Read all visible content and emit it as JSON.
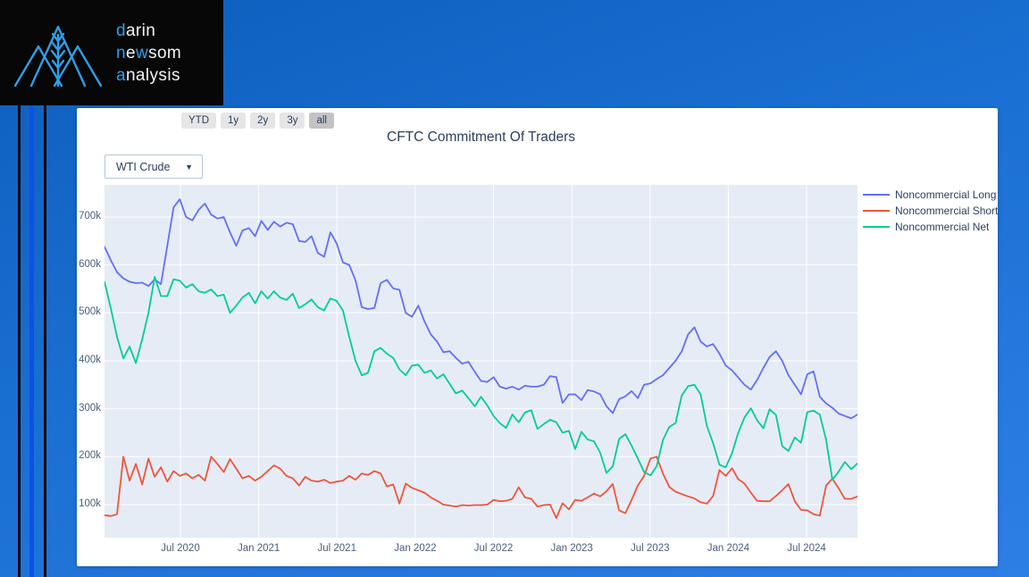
{
  "logo": {
    "lines": [
      {
        "parts": [
          {
            "t": "d",
            "c": "accent"
          },
          {
            "t": "arin",
            "c": "light"
          }
        ]
      },
      {
        "parts": [
          {
            "t": "n",
            "c": "accent"
          },
          {
            "t": "e",
            "c": "light"
          },
          {
            "t": "w",
            "c": "accent"
          },
          {
            "t": "som",
            "c": "light"
          }
        ]
      },
      {
        "parts": [
          {
            "t": "a",
            "c": "accent"
          },
          {
            "t": "nalysis",
            "c": "light"
          }
        ]
      }
    ],
    "accent_color": "#2d9fe8"
  },
  "toolbar": {
    "range_buttons": [
      {
        "label": "YTD",
        "active": false
      },
      {
        "label": "1y",
        "active": false
      },
      {
        "label": "2y",
        "active": false
      },
      {
        "label": "3y",
        "active": false
      },
      {
        "label": "all",
        "active": true
      }
    ]
  },
  "chart": {
    "title": "CFTC Commitment Of Traders",
    "dropdown": {
      "value": "WTI Crude",
      "caret": "▼"
    }
  },
  "chart_data": {
    "type": "line",
    "title": "CFTC Commitment Of Traders",
    "plot_bg": "#e5ecf6",
    "grid": true,
    "legend_position": "top-right",
    "x_axis": {
      "range": [
        2020.015,
        2024.825
      ],
      "tick_labels": [
        "Jul 2020",
        "Jan 2021",
        "Jul 2021",
        "Jan 2022",
        "Jul 2022",
        "Jan 2023",
        "Jul 2023",
        "Jan 2024",
        "Jul 2024"
      ],
      "tick_values": [
        2020.5,
        2021.0,
        2021.5,
        2022.0,
        2022.5,
        2023.0,
        2023.5,
        2024.0,
        2024.5
      ]
    },
    "y_axis": {
      "range": [
        31,
        767
      ],
      "tick_labels": [
        "100k",
        "200k",
        "300k",
        "400k",
        "500k",
        "600k",
        "700k"
      ],
      "tick_values": [
        100,
        200,
        300,
        400,
        500,
        600,
        700
      ],
      "units": "thousands of contracts"
    },
    "series": [
      {
        "name": "Noncommercial Long",
        "color": "#636efa",
        "values": [
          638,
          610,
          585,
          572,
          565,
          562,
          563,
          556,
          570,
          560,
          640,
          720,
          737,
          700,
          693,
          715,
          728,
          705,
          697,
          700,
          668,
          640,
          672,
          677,
          660,
          692,
          673,
          690,
          680,
          688,
          685,
          650,
          648,
          660,
          625,
          617,
          668,
          645,
          605,
          600,
          568,
          512,
          508,
          510,
          562,
          569,
          551,
          548,
          500,
          492,
          515,
          482,
          455,
          440,
          418,
          420,
          406,
          394,
          398,
          377,
          358,
          356,
          366,
          346,
          342,
          346,
          340,
          348,
          346,
          346,
          350,
          368,
          366,
          312,
          330,
          330,
          318,
          339,
          336,
          330,
          305,
          291,
          320,
          326,
          337,
          322,
          350,
          353,
          362,
          370,
          385,
          400,
          420,
          455,
          470,
          440,
          430,
          435,
          415,
          390,
          380,
          365,
          350,
          340,
          360,
          385,
          408,
          420,
          400,
          370,
          350,
          330,
          372,
          378,
          325,
          311,
          302,
          290,
          285,
          280,
          288
        ]
      },
      {
        "name": "Noncommercial Short",
        "color": "#ef553b",
        "values": [
          78,
          76,
          80,
          200,
          150,
          185,
          142,
          196,
          158,
          178,
          148,
          170,
          160,
          165,
          155,
          162,
          150,
          200,
          185,
          168,
          195,
          175,
          155,
          160,
          150,
          158,
          170,
          182,
          175,
          160,
          155,
          140,
          158,
          150,
          148,
          152,
          145,
          148,
          150,
          160,
          152,
          165,
          162,
          170,
          165,
          138,
          142,
          102,
          144,
          135,
          130,
          125,
          115,
          108,
          100,
          98,
          96,
          99,
          98,
          99,
          99,
          100,
          110,
          107,
          108,
          112,
          136,
          115,
          112,
          96,
          99,
          100,
          72,
          103,
          90,
          110,
          108,
          115,
          123,
          117,
          128,
          143,
          88,
          82,
          110,
          140,
          160,
          196,
          200,
          165,
          137,
          127,
          122,
          117,
          113,
          105,
          102,
          118,
          172,
          160,
          176,
          153,
          144,
          125,
          108,
          107,
          107,
          118,
          130,
          143,
          107,
          89,
          88,
          80,
          77,
          140,
          154,
          134,
          112,
          112,
          117
        ]
      },
      {
        "name": "Noncommercial Net",
        "color": "#00cc96",
        "values": [
          565,
          510,
          450,
          405,
          430,
          395,
          445,
          500,
          575,
          535,
          535,
          570,
          567,
          553,
          560,
          545,
          542,
          549,
          535,
          538,
          500,
          515,
          532,
          542,
          520,
          545,
          530,
          545,
          532,
          527,
          540,
          510,
          518,
          528,
          512,
          505,
          530,
          525,
          505,
          450,
          400,
          370,
          375,
          420,
          427,
          415,
          406,
          382,
          370,
          390,
          392,
          375,
          380,
          363,
          372,
          352,
          332,
          338,
          322,
          305,
          325,
          307,
          285,
          270,
          260,
          288,
          272,
          292,
          297,
          258,
          268,
          277,
          272,
          250,
          254,
          216,
          252,
          236,
          232,
          208,
          166,
          180,
          237,
          247,
          223,
          196,
          168,
          161,
          180,
          235,
          262,
          270,
          328,
          347,
          350,
          330,
          264,
          228,
          183,
          178,
          207,
          250,
          282,
          301,
          276,
          259,
          299,
          287,
          222,
          212,
          240,
          229,
          293,
          296,
          288,
          235,
          152,
          169,
          189,
          174,
          186
        ]
      }
    ]
  }
}
